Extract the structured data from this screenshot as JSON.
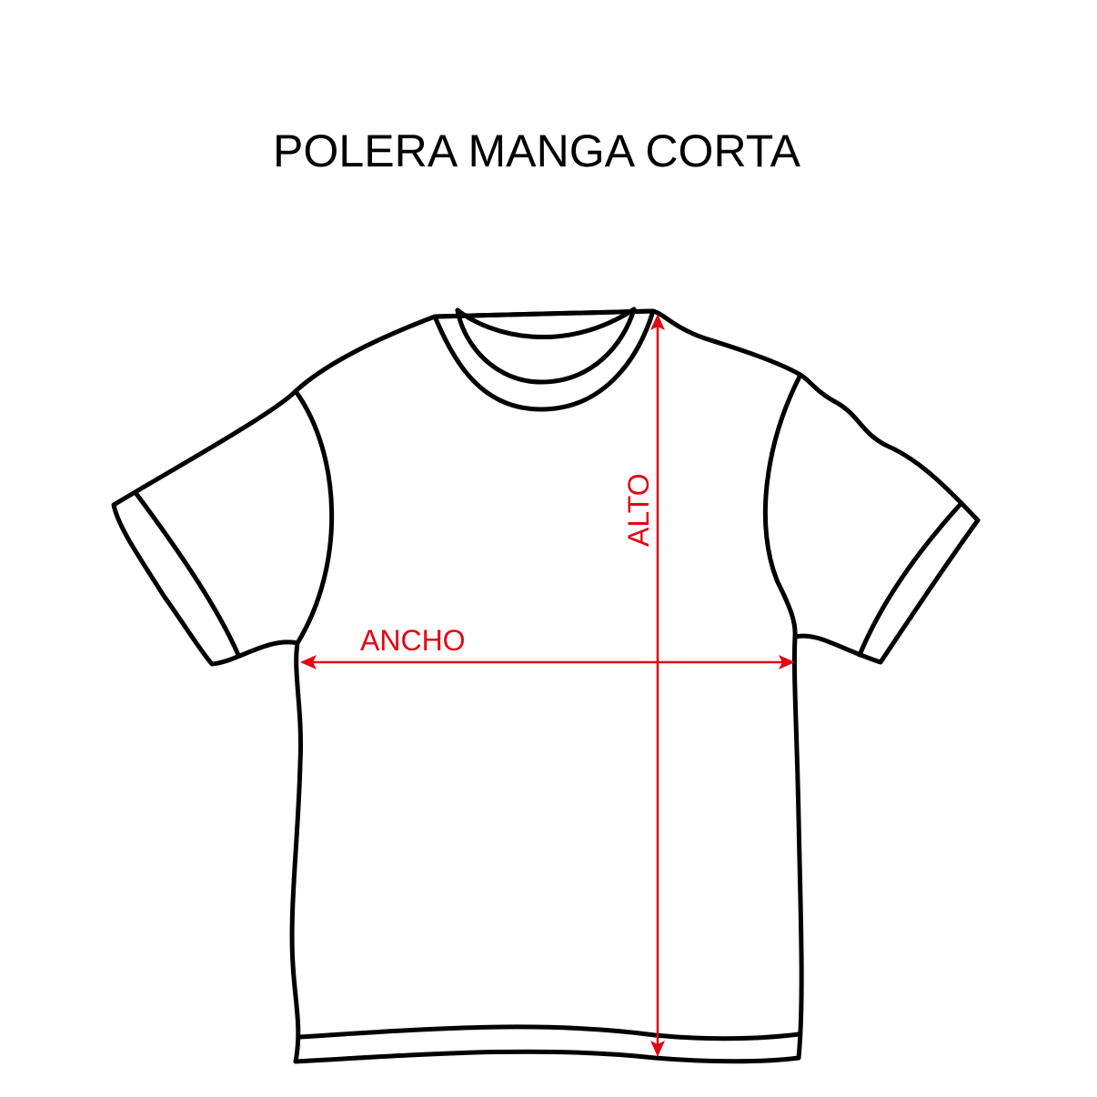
{
  "title": "POLERA MANGA CORTA",
  "measurements": {
    "width_label": "ANCHO",
    "height_label": "ALTO"
  },
  "colors": {
    "outline": "#000000",
    "measure": "#e30613"
  }
}
